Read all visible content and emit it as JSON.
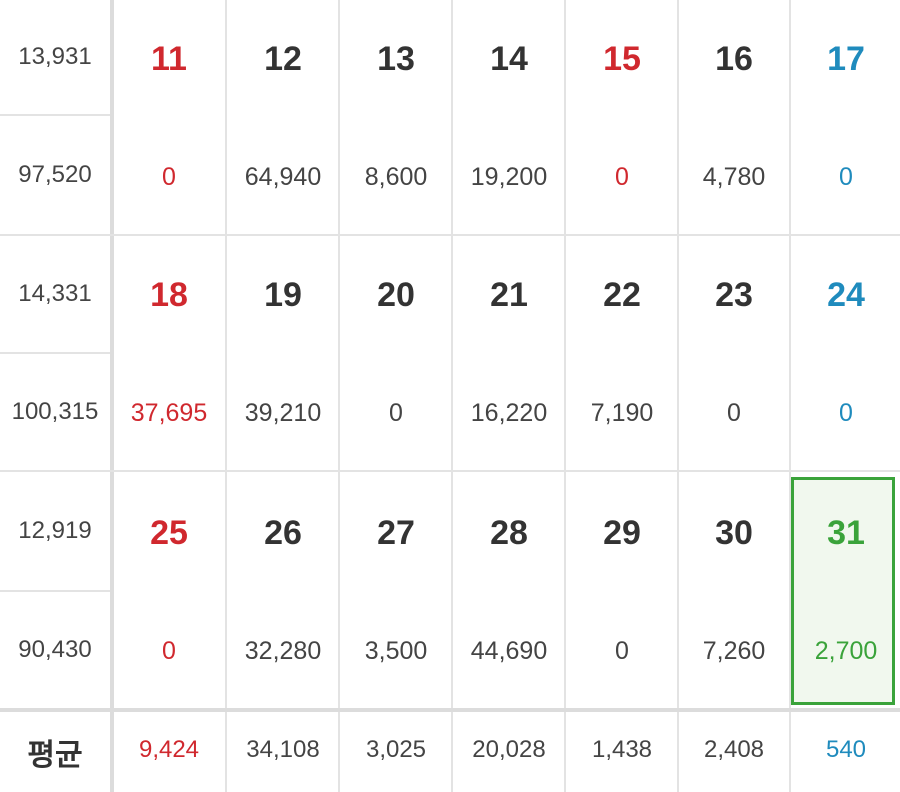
{
  "colors": {
    "sunday": "#d0282e",
    "saturday": "#1f8bbd",
    "today": "#3aa33a"
  },
  "weeks": [
    {
      "side_top": "13,931",
      "side_bottom": "97,520",
      "days": [
        {
          "day": "11",
          "value": "0"
        },
        {
          "day": "12",
          "value": "64,940"
        },
        {
          "day": "13",
          "value": "8,600"
        },
        {
          "day": "14",
          "value": "19,200"
        },
        {
          "day": "15",
          "value": "0"
        },
        {
          "day": "16",
          "value": "4,780"
        },
        {
          "day": "17",
          "value": "0"
        }
      ]
    },
    {
      "side_top": "14,331",
      "side_bottom": "100,315",
      "days": [
        {
          "day": "18",
          "value": "37,695"
        },
        {
          "day": "19",
          "value": "39,210"
        },
        {
          "day": "20",
          "value": "0"
        },
        {
          "day": "21",
          "value": "16,220"
        },
        {
          "day": "22",
          "value": "7,190"
        },
        {
          "day": "23",
          "value": "0"
        },
        {
          "day": "24",
          "value": "0"
        }
      ]
    },
    {
      "side_top": "12,919",
      "side_bottom": "90,430",
      "days": [
        {
          "day": "25",
          "value": "0"
        },
        {
          "day": "26",
          "value": "32,280"
        },
        {
          "day": "27",
          "value": "3,500"
        },
        {
          "day": "28",
          "value": "44,690"
        },
        {
          "day": "29",
          "value": "0"
        },
        {
          "day": "30",
          "value": "7,260"
        },
        {
          "day": "31",
          "value": "2,700"
        }
      ]
    }
  ],
  "average": {
    "label": "평균",
    "values": [
      "9,424",
      "34,108",
      "3,025",
      "20,028",
      "1,438",
      "2,408",
      "540"
    ]
  }
}
